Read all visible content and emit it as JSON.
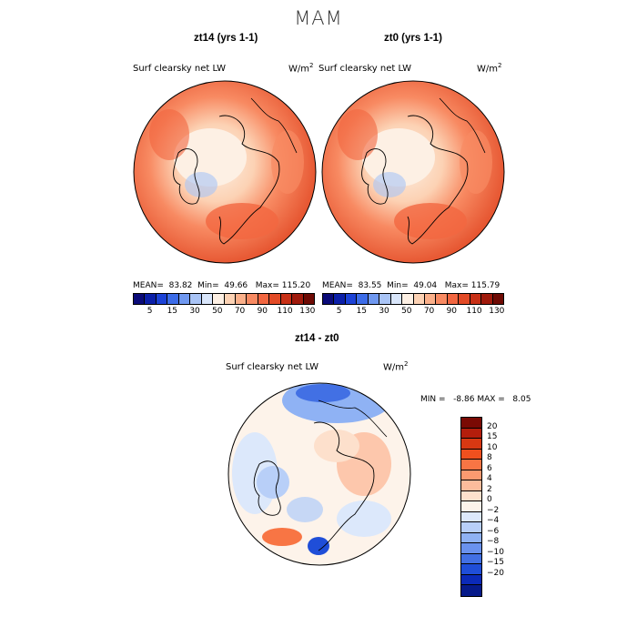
{
  "title": "MAM",
  "panels": [
    {
      "title": "zt14 (yrs 1-1)",
      "subtitle": "Surf clearsky net LW",
      "units": "W/m",
      "units_exp": "2",
      "mean_label": "MEAN=",
      "mean": "83.82",
      "min_label": "Min=",
      "min": "49.66",
      "max_label": "Max=",
      "max": "115.20"
    },
    {
      "title": "zt0 (yrs 1-1)",
      "subtitle": "Surf clearsky net LW",
      "units": "W/m",
      "units_exp": "2",
      "mean_label": "MEAN=",
      "mean": "83.55",
      "min_label": "Min=",
      "min": "49.04",
      "max_label": "Max=",
      "max": "115.79"
    },
    {
      "title": "zt14 - zt0",
      "subtitle": "Surf clearsky net LW",
      "units": "W/m",
      "units_exp": "2",
      "min_label": "MIN =",
      "min": "-8.86",
      "max_label": "MAX =",
      "max": "8.05"
    }
  ],
  "colorbar_abs": {
    "ticks": [
      "5",
      "15",
      "30",
      "50",
      "70",
      "90",
      "110",
      "130"
    ],
    "colors": [
      "#0a0a78",
      "#0b1fa8",
      "#1c42d6",
      "#3c6ce8",
      "#6f98f0",
      "#a9c4f6",
      "#d9e6fb",
      "#fdf0e4",
      "#fcd2b4",
      "#fbb08a",
      "#f88a62",
      "#f26640",
      "#e24a26",
      "#c83016",
      "#a01a0c",
      "#6e0a04"
    ]
  },
  "colorbar_diff": {
    "labels": [
      "20",
      "15",
      "10",
      "8",
      "6",
      "4",
      "2",
      "0",
      "−2",
      "−4",
      "−6",
      "−8",
      "−10",
      "−15",
      "−20"
    ],
    "colors": [
      "#7a0a04",
      "#b41e0c",
      "#d83812",
      "#f0501e",
      "#f87544",
      "#fb9a70",
      "#fcbc9c",
      "#fde0cc",
      "#fdf3ea",
      "#dce8fb",
      "#b8cff8",
      "#8fb2f4",
      "#6a92ee",
      "#4270e4",
      "#1f4ed8",
      "#0b2ab8",
      "#061a8a"
    ]
  }
}
